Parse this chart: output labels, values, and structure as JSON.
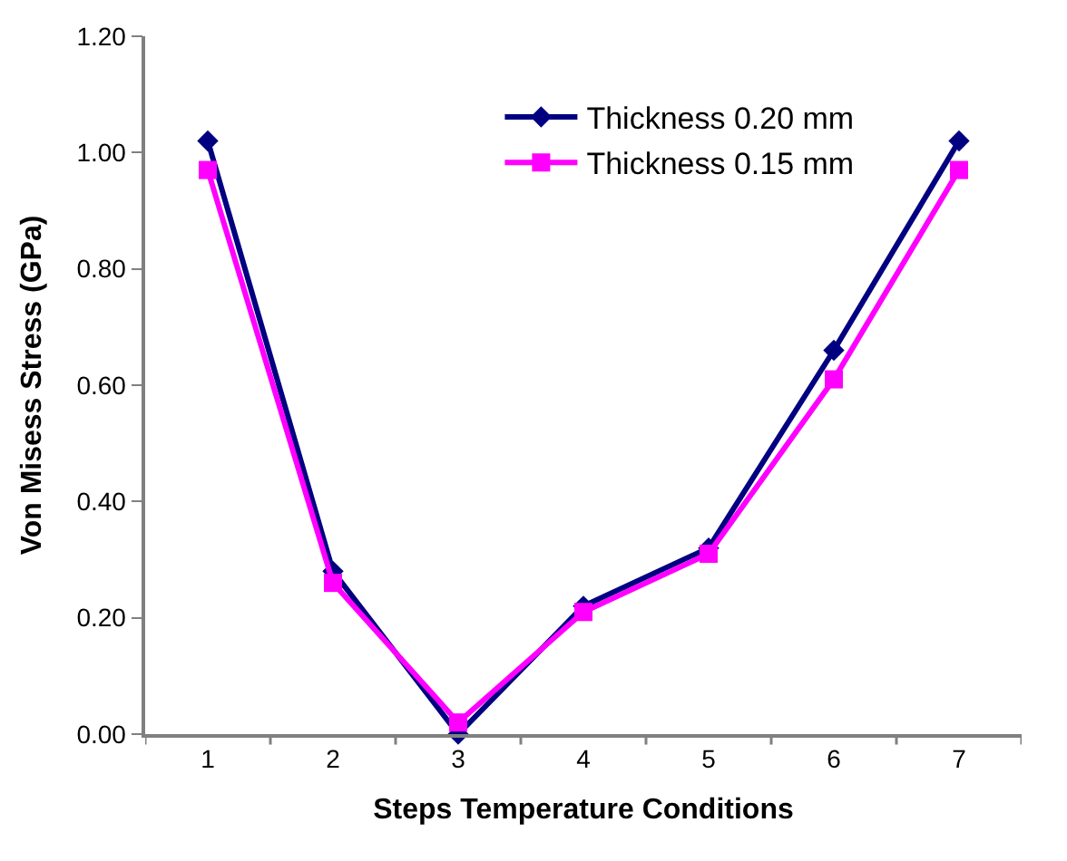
{
  "chart_data": {
    "type": "line",
    "xlabel": "Steps Temperature Conditions",
    "ylabel": "Von Misess Stress (GPa)",
    "categories": [
      "1",
      "2",
      "3",
      "4",
      "5",
      "6",
      "7"
    ],
    "series": [
      {
        "name": "Thickness 0.20 mm",
        "color": "#000080",
        "marker": "diamond",
        "values": [
          1.02,
          0.28,
          0.0,
          0.22,
          0.32,
          0.66,
          1.02
        ]
      },
      {
        "name": "Thickness 0.15 mm",
        "color": "#ff00ff",
        "marker": "square",
        "values": [
          0.97,
          0.26,
          0.02,
          0.21,
          0.31,
          0.61,
          0.97
        ]
      }
    ],
    "ylim": [
      0,
      1.2
    ],
    "yticks": [
      {
        "value": 0,
        "label": "0.00"
      },
      {
        "value": 0.2,
        "label": "0.20"
      },
      {
        "value": 0.4,
        "label": "0.40"
      },
      {
        "value": 0.6,
        "label": "0.60"
      },
      {
        "value": 0.8,
        "label": "0.80"
      },
      {
        "value": 1.0,
        "label": "1.00"
      },
      {
        "value": 1.2,
        "label": "1.20"
      }
    ],
    "legend": "top right",
    "line_style": "solid"
  }
}
